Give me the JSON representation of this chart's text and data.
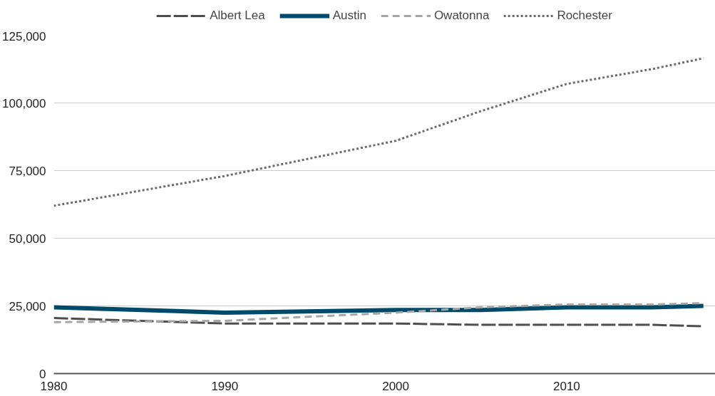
{
  "chart_data": {
    "type": "line",
    "x": [
      1980,
      1990,
      2000,
      2005,
      2010,
      2015,
      2018
    ],
    "series": [
      {
        "name": "Albert Lea",
        "color": "#4d4d4d",
        "line_style": "dashed",
        "values": [
          20500,
          18500,
          18500,
          18000,
          18000,
          18000,
          17500
        ]
      },
      {
        "name": "Austin",
        "color": "#004a6a",
        "line_style": "solid",
        "values": [
          24500,
          22500,
          23500,
          23500,
          24500,
          24500,
          25000
        ]
      },
      {
        "name": "Owatonna",
        "color": "#a6a6a6",
        "line_style": "dashed",
        "values": [
          19000,
          19500,
          22500,
          24500,
          25500,
          25500,
          26000
        ]
      },
      {
        "name": "Rochester",
        "color": "#6b6b6b",
        "line_style": "dotted",
        "values": [
          62000,
          73000,
          86000,
          97000,
          107000,
          112500,
          116500
        ]
      }
    ],
    "xlim": [
      1980,
      2018.7
    ],
    "xticks": [
      1980,
      1990,
      2000,
      2010
    ],
    "ylim": [
      0,
      125000
    ],
    "yticks": [
      {
        "value": 0,
        "label": "0"
      },
      {
        "value": 25000,
        "label": "25,000"
      },
      {
        "value": 50000,
        "label": "50,000"
      },
      {
        "value": 75000,
        "label": "75,000"
      },
      {
        "value": 100000,
        "label": "100,000"
      },
      {
        "value": 125000,
        "label": "125,000"
      }
    ],
    "grid": "y",
    "legend": "top"
  }
}
